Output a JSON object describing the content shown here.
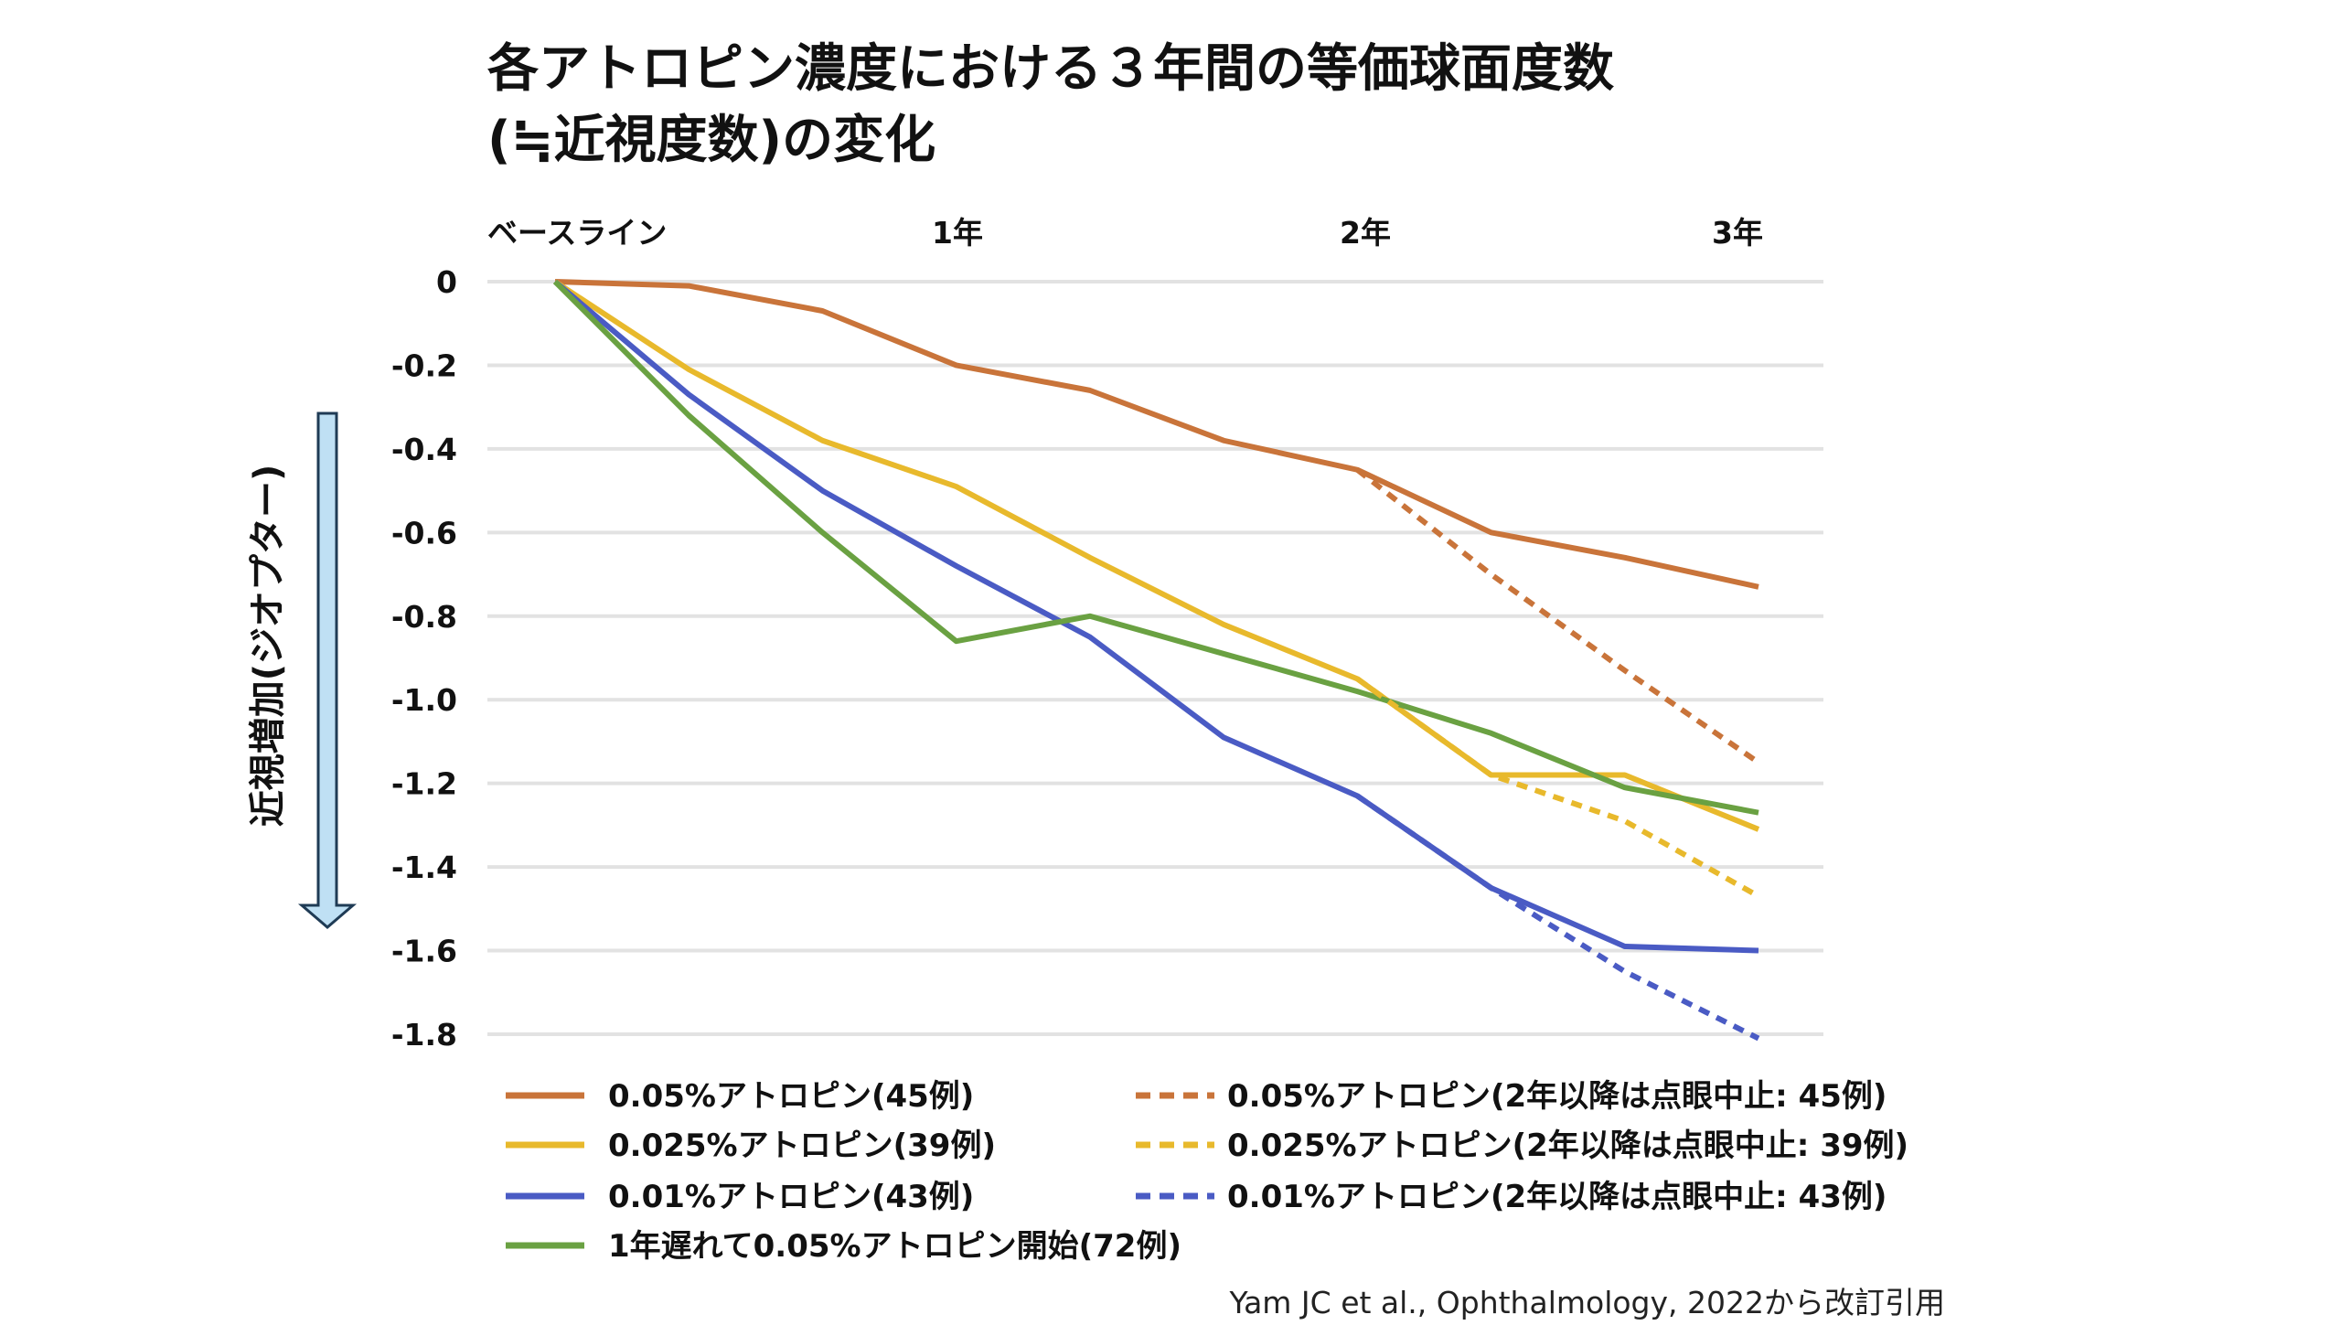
{
  "chart_data": {
    "type": "line",
    "title": "各アトロピン濃度における３年間の等価球面度数",
    "title_line2": "(≒近視度数)の変化",
    "ylabel": "近視増加(ジオプター)",
    "ylim": [
      -1.8,
      0
    ],
    "yticks": [
      "0",
      "-0.2",
      "-0.4",
      "-0.6",
      "-0.8",
      "-1.0",
      "-1.2",
      "-1.4",
      "-1.6",
      "-1.8"
    ],
    "ytick_values": [
      0,
      -0.2,
      -0.4,
      -0.6,
      -0.8,
      -1.0,
      -1.2,
      -1.4,
      -1.6,
      -1.8
    ],
    "x_unit": "months",
    "xticks": [
      {
        "label": "ベースライン",
        "value": 0
      },
      {
        "label": "1年",
        "value": 12
      },
      {
        "label": "2年",
        "value": 24
      },
      {
        "label": "3年",
        "value": 36
      }
    ],
    "grid": true,
    "legend_position": "bottom",
    "series": [
      {
        "name": "0.05%アトロピン(45例)",
        "color": "#c9743a",
        "dash": false,
        "x": [
          0,
          4,
          8,
          12,
          16,
          20,
          24,
          28,
          32,
          36
        ],
        "values": [
          0,
          -0.01,
          -0.07,
          -0.2,
          -0.26,
          -0.38,
          -0.45,
          -0.6,
          -0.66,
          -0.73
        ]
      },
      {
        "name": "0.025%アトロピン(39例)",
        "color": "#e8b92c",
        "dash": false,
        "x": [
          0,
          4,
          8,
          12,
          16,
          20,
          24,
          28,
          32,
          36
        ],
        "values": [
          0,
          -0.21,
          -0.38,
          -0.49,
          -0.66,
          -0.82,
          -0.95,
          -1.18,
          -1.18,
          -1.31
        ]
      },
      {
        "name": "0.01%アトロピン(43例)",
        "color": "#4a5bc4",
        "dash": false,
        "x": [
          0,
          4,
          8,
          12,
          16,
          20,
          24,
          28,
          32,
          36
        ],
        "values": [
          0,
          -0.27,
          -0.5,
          -0.68,
          -0.85,
          -1.09,
          -1.23,
          -1.45,
          -1.59,
          -1.6
        ]
      },
      {
        "name": "1年遅れて0.05%アトロピン開始(72例)",
        "color": "#6aa142",
        "dash": false,
        "x": [
          0,
          4,
          8,
          12,
          16,
          20,
          24,
          28,
          32,
          36
        ],
        "values": [
          0,
          -0.32,
          -0.6,
          -0.86,
          -0.8,
          -0.89,
          -0.98,
          -1.08,
          -1.21,
          -1.27
        ]
      },
      {
        "name": "0.05%アトロピン(2年以降は点眼中止: 45例)",
        "color": "#c9743a",
        "dash": true,
        "x": [
          24,
          28,
          32,
          36
        ],
        "values": [
          -0.45,
          -0.7,
          -0.93,
          -1.15
        ]
      },
      {
        "name": "0.025%アトロピン(2年以降は点眼中止: 39例)",
        "color": "#e8b92c",
        "dash": true,
        "x": [
          24,
          28,
          32,
          36
        ],
        "values": [
          -0.95,
          -1.18,
          -1.29,
          -1.47
        ]
      },
      {
        "name": "0.01%アトロピン(2年以降は点眼中止: 43例)",
        "color": "#4a5bc4",
        "dash": true,
        "x": [
          24,
          28,
          32,
          36
        ],
        "values": [
          -1.23,
          -1.45,
          -1.65,
          -1.81
        ]
      }
    ],
    "legend_order": [
      0,
      4,
      1,
      5,
      2,
      6,
      3
    ],
    "arrow_color": "#bfe0f4",
    "source": "Yam JC et al., Ophthalmology, 2022から改訂引用"
  }
}
